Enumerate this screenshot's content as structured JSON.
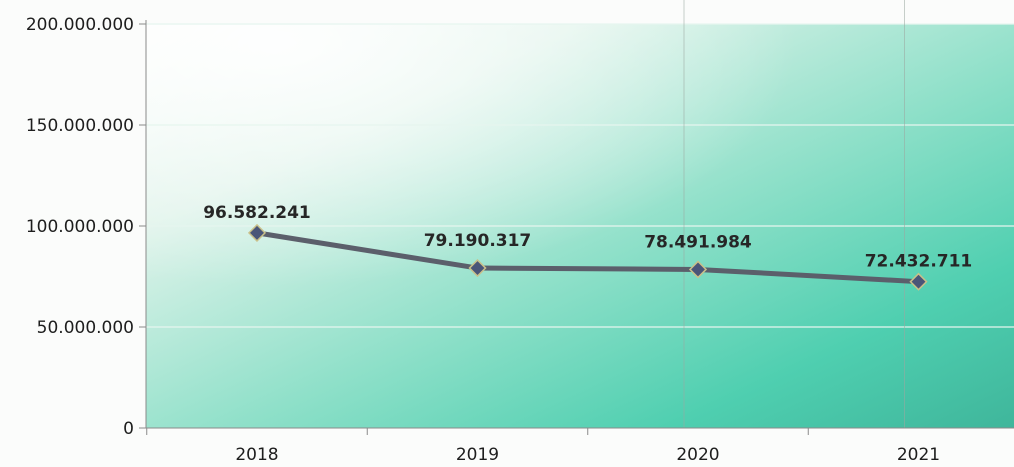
{
  "chart_data": {
    "type": "line",
    "title": "",
    "xlabel": "",
    "ylabel": "",
    "categories": [
      "2018",
      "2019",
      "2020",
      "2021"
    ],
    "series": [
      {
        "values": [
          96582241,
          79190317,
          78491984,
          72432711
        ],
        "data_labels": [
          "96.582.241",
          "79.190.317",
          "78.491.984",
          "72.432.711"
        ]
      }
    ],
    "ylim": [
      0,
      200000000
    ],
    "y_ticks": [
      {
        "value": 0,
        "label": "0"
      },
      {
        "value": 50000000,
        "label": "50.000.000"
      },
      {
        "value": 100000000,
        "label": "100.000.000"
      },
      {
        "value": 150000000,
        "label": "150.000.000"
      },
      {
        "value": 200000000,
        "label": "200.000.000"
      }
    ],
    "grid": "horizontal",
    "legend": "none",
    "colors": {
      "line": "#5b5f6b",
      "marker_fill": "#4a5578",
      "marker_stroke": "#c9c08a",
      "plot_bg_light": "#f4f8f5",
      "plot_bg_teal": "#4fcfb0",
      "gridline": "#e6f5ef",
      "axis": "#8a8a8a"
    }
  }
}
